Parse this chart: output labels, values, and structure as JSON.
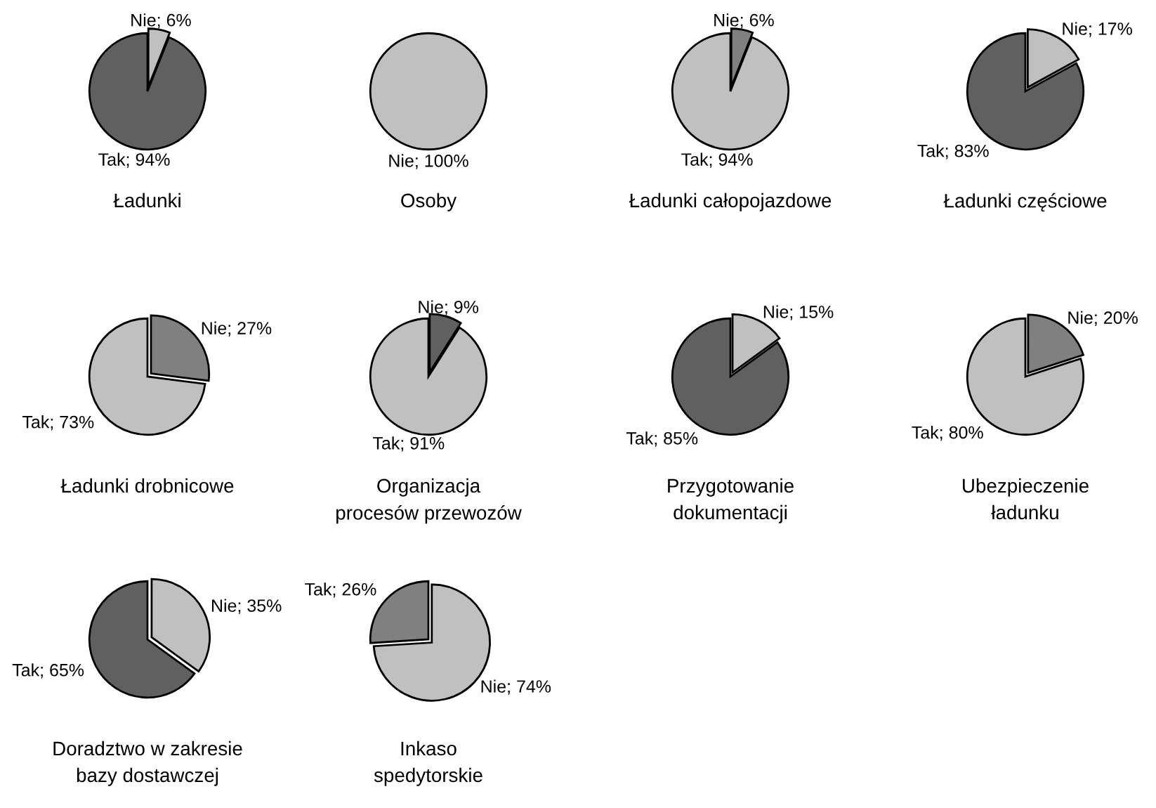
{
  "chart_data": [
    {
      "type": "pie",
      "title": "Ładunki",
      "categories": [
        "Nie",
        "Tak"
      ],
      "values": [
        6,
        94
      ],
      "value_labels": [
        "6%",
        "94%"
      ],
      "colors": [
        "#c0c0c0",
        "#606060"
      ]
    },
    {
      "type": "pie",
      "title": "Osoby",
      "categories": [
        "Nie"
      ],
      "values": [
        100
      ],
      "value_labels": [
        "100%"
      ],
      "colors": [
        "#c0c0c0"
      ]
    },
    {
      "type": "pie",
      "title": "Ładunki całopojazdowe",
      "categories": [
        "Nie",
        "Tak"
      ],
      "values": [
        6,
        94
      ],
      "value_labels": [
        "6%",
        "94%"
      ],
      "colors": [
        "#808080",
        "#c0c0c0"
      ]
    },
    {
      "type": "pie",
      "title": "Ładunki częściowe",
      "categories": [
        "Nie",
        "Tak"
      ],
      "values": [
        17,
        83
      ],
      "value_labels": [
        "17%",
        "83%"
      ],
      "colors": [
        "#c0c0c0",
        "#606060"
      ]
    },
    {
      "type": "pie",
      "title": "Ładunki drobnicowe",
      "categories": [
        "Nie",
        "Tak"
      ],
      "values": [
        27,
        73
      ],
      "value_labels": [
        "27%",
        "73%"
      ],
      "colors": [
        "#808080",
        "#c0c0c0"
      ]
    },
    {
      "type": "pie",
      "title": "Organizacja\nprocesów przewozów",
      "categories": [
        "Nie",
        "Tak"
      ],
      "values": [
        9,
        91
      ],
      "value_labels": [
        "9%",
        "91%"
      ],
      "colors": [
        "#606060",
        "#c0c0c0"
      ]
    },
    {
      "type": "pie",
      "title": "Przygotowanie\ndokumentacji",
      "categories": [
        "Nie",
        "Tak"
      ],
      "values": [
        15,
        85
      ],
      "value_labels": [
        "15%",
        "85%"
      ],
      "colors": [
        "#c0c0c0",
        "#606060"
      ]
    },
    {
      "type": "pie",
      "title": "Ubezpieczenie\nładunku",
      "categories": [
        "Nie",
        "Tak"
      ],
      "values": [
        20,
        80
      ],
      "value_labels": [
        "20%",
        "80%"
      ],
      "colors": [
        "#808080",
        "#c0c0c0"
      ]
    },
    {
      "type": "pie",
      "title": "Doradztwo w zakresie\nbazy dostawczej",
      "categories": [
        "Nie",
        "Tak"
      ],
      "values": [
        35,
        65
      ],
      "value_labels": [
        "35%",
        "65%"
      ],
      "colors": [
        "#c0c0c0",
        "#606060"
      ]
    },
    {
      "type": "pie",
      "title": "Inkaso\nspedytorskie",
      "categories": [
        "Nie",
        "Tak"
      ],
      "values": [
        74,
        26
      ],
      "value_labels": [
        "74%",
        "26%"
      ],
      "colors": [
        "#c0c0c0",
        "#808080"
      ]
    }
  ]
}
